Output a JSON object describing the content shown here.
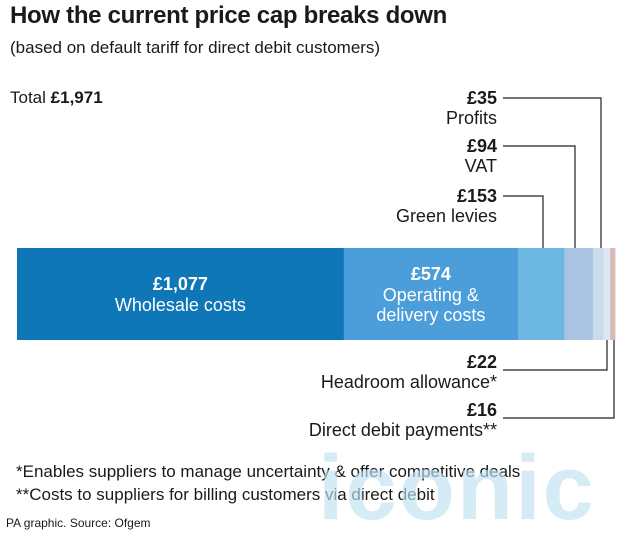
{
  "header": {
    "title": "How the current price cap breaks down",
    "subtitle": "(based on default tariff for direct debit customers)"
  },
  "total": {
    "label": "Total",
    "value": "£1,971"
  },
  "chart_data": {
    "type": "bar",
    "orientation": "horizontal-stacked",
    "total": 1971,
    "segments": [
      {
        "value": 1077,
        "amount": "£1,077",
        "label": "Wholesale costs",
        "label_lines": [
          "Wholesale costs"
        ],
        "color": "#0f76b7",
        "label_position": "inside"
      },
      {
        "value": 574,
        "amount": "£574",
        "label": "Operating & delivery costs",
        "label_lines": [
          "Operating &",
          "delivery costs"
        ],
        "color": "#4b9ed9",
        "label_position": "inside"
      },
      {
        "value": 153,
        "amount": "£153",
        "label": "Green levies",
        "label_lines": [
          "Green levies"
        ],
        "color": "#6bb7e2",
        "label_position": "above"
      },
      {
        "value": 94,
        "amount": "£94",
        "label": "VAT",
        "label_lines": [
          "VAT"
        ],
        "color": "#a9c4e0",
        "label_position": "above"
      },
      {
        "value": 35,
        "amount": "£35",
        "label": "Profits",
        "label_lines": [
          "Profits"
        ],
        "color": "#c9dcee",
        "label_position": "above"
      },
      {
        "value": 22,
        "amount": "£22",
        "label": "Headroom allowance*",
        "label_lines": [
          "Headroom allowance*"
        ],
        "color": "#dde7f1",
        "label_position": "below"
      },
      {
        "value": 16,
        "amount": "£16",
        "label": "Direct debit payments**",
        "label_lines": [
          "Direct debit payments**"
        ],
        "color": "#d8b9b6",
        "label_position": "below"
      }
    ]
  },
  "footnotes": [
    "*Enables suppliers to manage uncertainty & offer competitive deals",
    "**Costs to suppliers for billing customers via direct debit"
  ],
  "source": "PA graphic. Source: Ofgem",
  "watermark": "iconic"
}
